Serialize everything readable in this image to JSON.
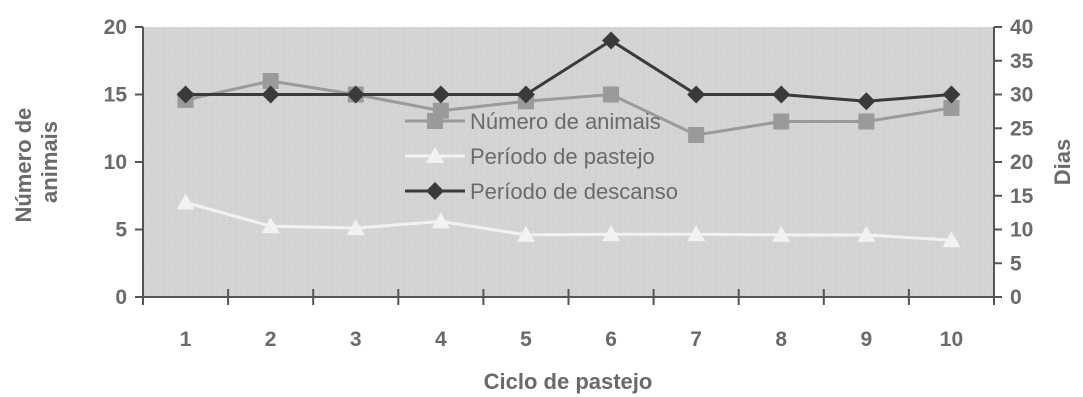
{
  "chart_data": {
    "type": "line",
    "categories": [
      "1",
      "2",
      "3",
      "4",
      "5",
      "6",
      "7",
      "8",
      "9",
      "10"
    ],
    "xlabel": "Ciclo de pastejo",
    "ylabel_left": "Número de animais",
    "ylabel_left_lines": [
      "Número de",
      "animais"
    ],
    "ylabel_right": "Dias",
    "ylim_left": [
      0,
      20
    ],
    "yticks_left": [
      "0",
      "5",
      "10",
      "15",
      "20"
    ],
    "ylim_right": [
      0,
      40
    ],
    "yticks_right": [
      "0",
      "5",
      "10",
      "15",
      "20",
      "25",
      "30",
      "35",
      "40"
    ],
    "series": [
      {
        "name": "Número de animais",
        "axis": "left",
        "marker": "square",
        "color": "#9a9a9a",
        "values": [
          14.6,
          16,
          15,
          13.8,
          14.5,
          15,
          12,
          13,
          13,
          14
        ]
      },
      {
        "name": "Período de pastejo",
        "axis": "right",
        "marker": "triangle",
        "color": "#f2f2f2",
        "values": [
          14,
          10.5,
          10.2,
          11.2,
          9.2,
          9.3,
          9.3,
          9.2,
          9.2,
          8.4
        ]
      },
      {
        "name": "Período de descanso",
        "axis": "right",
        "marker": "diamond",
        "color": "#3a3a3a",
        "values": [
          30,
          30,
          30,
          30,
          30,
          38,
          30,
          30,
          29,
          30
        ]
      }
    ],
    "legend_position": "center",
    "background_color": "#d4d4d4",
    "axis_color": "#555555"
  }
}
